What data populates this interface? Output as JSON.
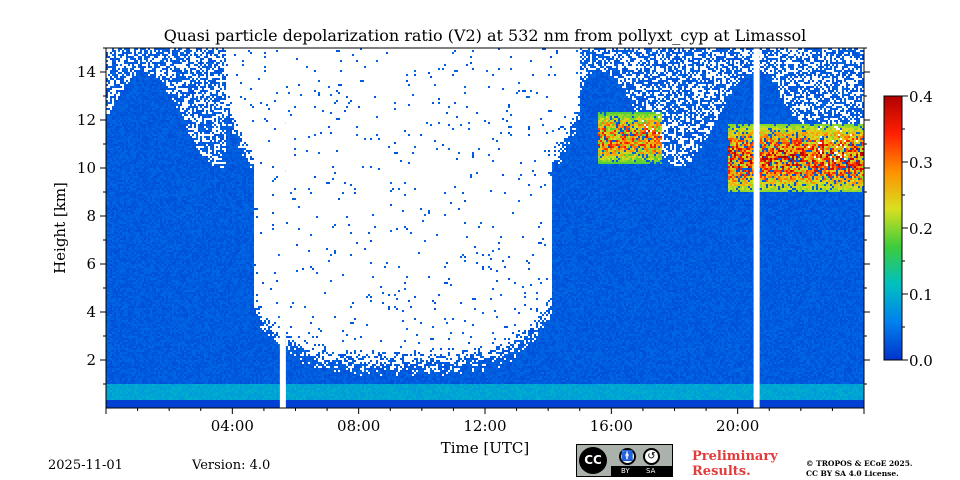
{
  "chart_data": {
    "type": "heatmap",
    "title": "Quasi particle depolarization ratio (V2) at 532 nm from pollyxt_cyp at Limassol",
    "xlabel": "Time [UTC]",
    "ylabel": "Height [km]",
    "xlim": [
      0,
      24
    ],
    "ylim": [
      0,
      15
    ],
    "x_ticks": [
      {
        "value": 4,
        "label": "04:00"
      },
      {
        "value": 8,
        "label": "08:00"
      },
      {
        "value": 12,
        "label": "12:00"
      },
      {
        "value": 16,
        "label": "16:00"
      },
      {
        "value": 20,
        "label": "20:00"
      }
    ],
    "y_ticks": [
      {
        "value": 2,
        "label": "2"
      },
      {
        "value": 4,
        "label": "4"
      },
      {
        "value": 6,
        "label": "6"
      },
      {
        "value": 8,
        "label": "8"
      },
      {
        "value": 10,
        "label": "10"
      },
      {
        "value": 12,
        "label": "12"
      },
      {
        "value": 14,
        "label": "14"
      }
    ],
    "colorbar": {
      "range": [
        0.0,
        0.4
      ],
      "ticks": [
        {
          "value": 0.0,
          "label": "0.0"
        },
        {
          "value": 0.1,
          "label": "0.1"
        },
        {
          "value": 0.2,
          "label": "0.2"
        },
        {
          "value": 0.3,
          "label": "0.3"
        },
        {
          "value": 0.4,
          "label": "0.4"
        }
      ],
      "colors": [
        "#0033cc",
        "#0080ee",
        "#00c0c0",
        "#3ccc3c",
        "#d8e020",
        "#ff9000",
        "#ff2000",
        "#b00000"
      ]
    },
    "features": {
      "background_value": 0.02,
      "near_surface_layer": {
        "height_range_km": [
          0.3,
          1.0
        ],
        "value": 0.08
      },
      "daytime_noise_gap": {
        "time_range_h": [
          3.8,
          15.0
        ],
        "min_height_km": 2.5
      },
      "cirrus_clouds": [
        {
          "time_range_h": [
            15.6,
            17.6
          ],
          "height_range_km": [
            10.2,
            12.3
          ],
          "value": 0.3
        },
        {
          "time_range_h": [
            19.7,
            24.0
          ],
          "height_range_km": [
            9.0,
            11.8
          ],
          "value": 0.33
        }
      ],
      "missing_data_columns_h": [
        5.6,
        20.6
      ]
    }
  },
  "footer": {
    "date": "2025-11-01",
    "version": "Version: 4.0",
    "preliminary_line1": "Preliminary",
    "preliminary_line2": "Results.",
    "copyright_line1": "© TROPOS & ECoE 2025.",
    "copyright_line2": "CC BY SA 4.0 License.",
    "license_badge": {
      "cc": "CC",
      "by": "BY",
      "sa": "SA"
    }
  }
}
